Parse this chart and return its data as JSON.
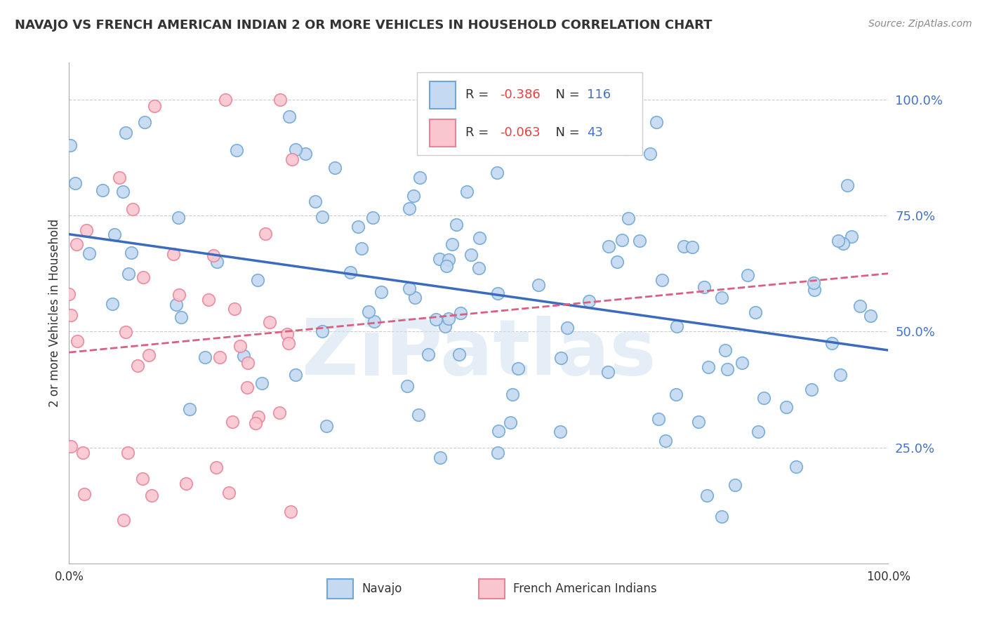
{
  "title": "NAVAJO VS FRENCH AMERICAN INDIAN 2 OR MORE VEHICLES IN HOUSEHOLD CORRELATION CHART",
  "source": "Source: ZipAtlas.com",
  "ylabel": "2 or more Vehicles in Household",
  "ytick_labels": [
    "25.0%",
    "50.0%",
    "75.0%",
    "100.0%"
  ],
  "ytick_values": [
    0.25,
    0.5,
    0.75,
    1.0
  ],
  "navajo_R": -0.386,
  "navajo_N": 116,
  "french_R": -0.063,
  "french_N": 43,
  "navajo_color": "#c5d9f0",
  "navajo_edge": "#6fa8d6",
  "french_color": "#f9c6d0",
  "french_edge": "#e8849a",
  "trend_navajo_color": "#3a6bbf",
  "trend_french_color": "#d96080",
  "background_color": "#ffffff",
  "grid_color": "#cccccc",
  "title_color": "#333333",
  "ytick_color": "#4472c4",
  "watermark": "ZiPatlas",
  "legend_label_navajo": "Navajo",
  "legend_label_french": "French American Indians",
  "legend_R1_color": "#e84040",
  "legend_R2_color": "#e84040"
}
